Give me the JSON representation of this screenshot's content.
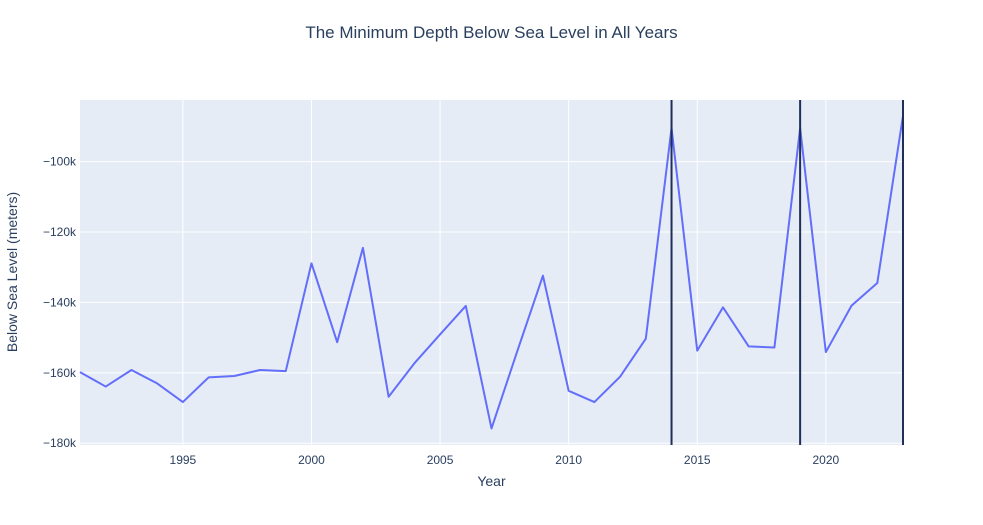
{
  "chart_data": {
    "type": "line",
    "title": "The Minimum Depth Below Sea Level in All Years",
    "xlabel": "Year",
    "ylabel": "Below Sea Level (meters)",
    "xlim": [
      1991,
      2023
    ],
    "ylim": [
      -180500,
      -82500
    ],
    "x_ticks": [
      1995,
      2000,
      2005,
      2010,
      2015,
      2020
    ],
    "x_tick_labels": [
      "1995",
      "2000",
      "2005",
      "2010",
      "2015",
      "2020"
    ],
    "y_ticks": [
      -180000,
      -160000,
      -140000,
      -120000,
      -100000
    ],
    "y_tick_labels": [
      "−180k",
      "−160k",
      "−140k",
      "−120k",
      "−100k"
    ],
    "grid": true,
    "colors": {
      "line": "#636efa",
      "vline": "#1f2f5a",
      "plot_bg": "#e5ecf6",
      "grid": "#ffffff",
      "text": "#2a3f5f"
    },
    "x": [
      1991,
      1992,
      1993,
      1994,
      1995,
      1996,
      1997,
      1998,
      1999,
      2000,
      2001,
      2002,
      2003,
      2004,
      2005,
      2006,
      2007,
      2008,
      2009,
      2010,
      2011,
      2012,
      2013,
      2014,
      2015,
      2016,
      2017,
      2018,
      2019,
      2020,
      2021,
      2022,
      2023
    ],
    "values": [
      -159800,
      -163900,
      -159200,
      -163000,
      -168300,
      -161300,
      -160900,
      -159200,
      -159500,
      -128900,
      -151300,
      -124500,
      -166800,
      -157300,
      -149100,
      -141000,
      -175800,
      -153900,
      -132400,
      -165100,
      -168300,
      -161100,
      -150300,
      -90500,
      -153700,
      -141400,
      -152500,
      -152800,
      -90500,
      -154100,
      -140900,
      -134500,
      -87000
    ],
    "vlines": [
      2014,
      2019,
      2023
    ]
  }
}
